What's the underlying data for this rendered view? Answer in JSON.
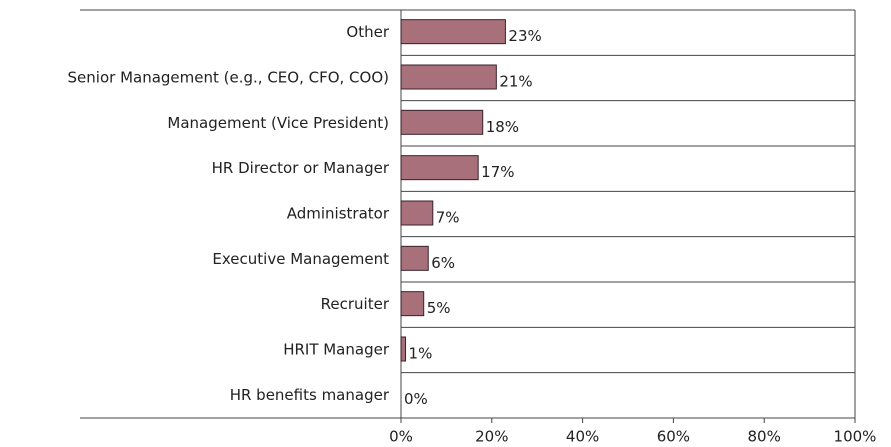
{
  "chart_data": {
    "type": "bar",
    "orientation": "horizontal",
    "categories": [
      "Other",
      "Senior Management (e.g., CEO, CFO, COO)",
      "Management (Vice President)",
      "HR Director or Manager",
      "Administrator",
      "Executive Management",
      "Recruiter",
      "HRIT Manager",
      "HR benefits manager"
    ],
    "values": [
      23,
      21,
      18,
      17,
      7,
      6,
      5,
      1,
      0
    ],
    "value_labels": [
      "23%",
      "21%",
      "18%",
      "17%",
      "7%",
      "6%",
      "5%",
      "1%",
      "0%"
    ],
    "color": "#a8707a",
    "xlim": [
      0,
      100
    ],
    "xticks": [
      {
        "value": 0,
        "label": "0%"
      },
      {
        "value": 20,
        "label": "20%"
      },
      {
        "value": 40,
        "label": "40%"
      },
      {
        "value": 60,
        "label": "60%"
      },
      {
        "value": 80,
        "label": "80%"
      },
      {
        "value": 100,
        "label": "100%"
      }
    ]
  }
}
